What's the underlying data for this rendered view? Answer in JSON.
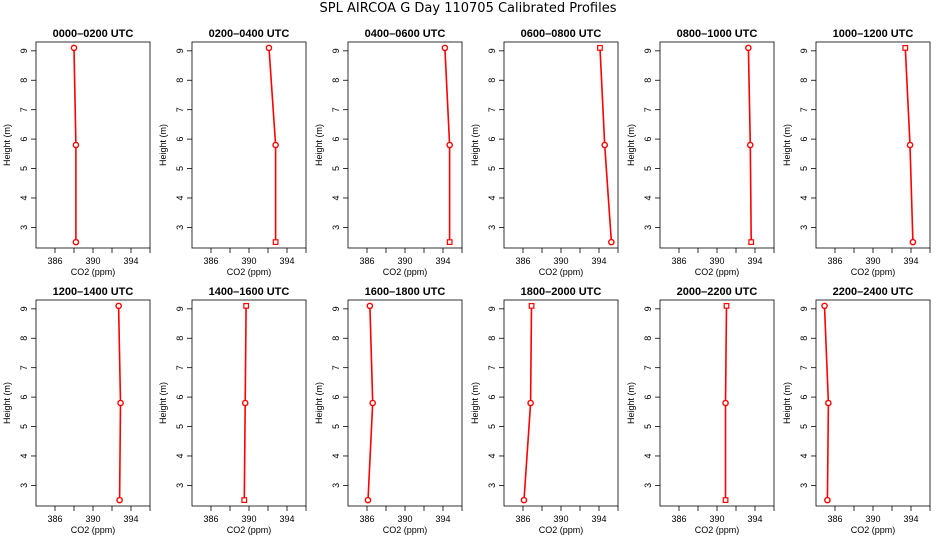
{
  "title": "SPL AIRCOA G  Day 110705  Calibrated Profiles",
  "colors": {
    "series": "#ff0000",
    "axis": "#000000"
  },
  "chart_data": [
    {
      "type": "line",
      "title": "0000–0200 UTC",
      "xlabel": "CO2 (ppm)",
      "ylabel": "Height (m)",
      "xlim": [
        384,
        396
      ],
      "ylim": [
        2.3,
        9.3
      ],
      "xticks": [
        "386",
        "390",
        "394"
      ],
      "yticks": [
        "3",
        "4",
        "5",
        "6",
        "7",
        "8",
        "9"
      ],
      "height": [
        9.1,
        5.8,
        2.5
      ],
      "co2": [
        388.0,
        388.2,
        388.2
      ],
      "markers": [
        "circle",
        "circle",
        "circle"
      ]
    },
    {
      "type": "line",
      "title": "0200–0400 UTC",
      "xlabel": "CO2 (ppm)",
      "ylabel": "Height (m)",
      "xlim": [
        384,
        396
      ],
      "ylim": [
        2.3,
        9.3
      ],
      "xticks": [
        "386",
        "390",
        "394"
      ],
      "yticks": [
        "3",
        "4",
        "5",
        "6",
        "7",
        "8",
        "9"
      ],
      "height": [
        9.1,
        5.8,
        2.5
      ],
      "co2": [
        392.1,
        392.8,
        392.8
      ],
      "markers": [
        "circle",
        "circle",
        "square"
      ]
    },
    {
      "type": "line",
      "title": "0400–0600 UTC",
      "xlabel": "CO2 (ppm)",
      "ylabel": "Height (m)",
      "xlim": [
        384,
        396
      ],
      "ylim": [
        2.3,
        9.3
      ],
      "xticks": [
        "386",
        "390",
        "394"
      ],
      "yticks": [
        "3",
        "4",
        "5",
        "6",
        "7",
        "8",
        "9"
      ],
      "height": [
        9.1,
        5.8,
        2.5
      ],
      "co2": [
        394.2,
        394.7,
        394.7
      ],
      "markers": [
        "circle",
        "circle",
        "square"
      ]
    },
    {
      "type": "line",
      "title": "0600–0800 UTC",
      "xlabel": "CO2 (ppm)",
      "ylabel": "Height (m)",
      "xlim": [
        384,
        396
      ],
      "ylim": [
        2.3,
        9.3
      ],
      "xticks": [
        "386",
        "390",
        "394"
      ],
      "yticks": [
        "3",
        "4",
        "5",
        "6",
        "7",
        "8",
        "9"
      ],
      "height": [
        9.1,
        5.8,
        2.5
      ],
      "co2": [
        394.1,
        394.6,
        395.3
      ],
      "markers": [
        "square",
        "circle",
        "circle"
      ]
    },
    {
      "type": "line",
      "title": "0800–1000 UTC",
      "xlabel": "CO2 (ppm)",
      "ylabel": "Height (m)",
      "xlim": [
        384,
        396
      ],
      "ylim": [
        2.3,
        9.3
      ],
      "xticks": [
        "386",
        "390",
        "394"
      ],
      "yticks": [
        "3",
        "4",
        "5",
        "6",
        "7",
        "8",
        "9"
      ],
      "height": [
        9.1,
        5.8,
        2.5
      ],
      "co2": [
        393.3,
        393.5,
        393.6
      ],
      "markers": [
        "circle",
        "circle",
        "square"
      ]
    },
    {
      "type": "line",
      "title": "1000–1200 UTC",
      "xlabel": "CO2 (ppm)",
      "ylabel": "Height (m)",
      "xlim": [
        384,
        396
      ],
      "ylim": [
        2.3,
        9.3
      ],
      "xticks": [
        "386",
        "390",
        "394"
      ],
      "yticks": [
        "3",
        "4",
        "5",
        "6",
        "7",
        "8",
        "9"
      ],
      "height": [
        9.1,
        5.8,
        2.5
      ],
      "co2": [
        393.4,
        393.9,
        394.2
      ],
      "markers": [
        "square",
        "circle",
        "circle"
      ]
    },
    {
      "type": "line",
      "title": "1200–1400 UTC",
      "xlabel": "CO2 (ppm)",
      "ylabel": "Height (m)",
      "xlim": [
        384,
        396
      ],
      "ylim": [
        2.3,
        9.3
      ],
      "xticks": [
        "386",
        "390",
        "394"
      ],
      "yticks": [
        "3",
        "4",
        "5",
        "6",
        "7",
        "8",
        "9"
      ],
      "height": [
        9.1,
        5.8,
        2.5
      ],
      "co2": [
        392.7,
        392.9,
        392.8
      ],
      "markers": [
        "circle",
        "circle",
        "circle"
      ]
    },
    {
      "type": "line",
      "title": "1400–1600 UTC",
      "xlabel": "CO2 (ppm)",
      "ylabel": "Height (m)",
      "xlim": [
        384,
        396
      ],
      "ylim": [
        2.3,
        9.3
      ],
      "xticks": [
        "386",
        "390",
        "394"
      ],
      "yticks": [
        "3",
        "4",
        "5",
        "6",
        "7",
        "8",
        "9"
      ],
      "height": [
        9.1,
        5.8,
        2.5
      ],
      "co2": [
        389.7,
        389.6,
        389.5
      ],
      "markers": [
        "square",
        "circle",
        "square"
      ]
    },
    {
      "type": "line",
      "title": "1600–1800 UTC",
      "xlabel": "CO2 (ppm)",
      "ylabel": "Height (m)",
      "xlim": [
        384,
        396
      ],
      "ylim": [
        2.3,
        9.3
      ],
      "xticks": [
        "386",
        "390",
        "394"
      ],
      "yticks": [
        "3",
        "4",
        "5",
        "6",
        "7",
        "8",
        "9"
      ],
      "height": [
        9.1,
        5.8,
        2.5
      ],
      "co2": [
        386.3,
        386.6,
        386.1
      ],
      "markers": [
        "circle",
        "circle",
        "circle"
      ]
    },
    {
      "type": "line",
      "title": "1800–2000 UTC",
      "xlabel": "CO2 (ppm)",
      "ylabel": "Height (m)",
      "xlim": [
        384,
        396
      ],
      "ylim": [
        2.3,
        9.3
      ],
      "xticks": [
        "386",
        "390",
        "394"
      ],
      "yticks": [
        "3",
        "4",
        "5",
        "6",
        "7",
        "8",
        "9"
      ],
      "height": [
        9.1,
        5.8,
        2.5
      ],
      "co2": [
        386.9,
        386.8,
        386.1
      ],
      "markers": [
        "square",
        "circle",
        "circle"
      ]
    },
    {
      "type": "line",
      "title": "2000–2200 UTC",
      "xlabel": "CO2 (ppm)",
      "ylabel": "Height (m)",
      "xlim": [
        384,
        396
      ],
      "ylim": [
        2.3,
        9.3
      ],
      "xticks": [
        "386",
        "390",
        "394"
      ],
      "yticks": [
        "3",
        "4",
        "5",
        "6",
        "7",
        "8",
        "9"
      ],
      "height": [
        9.1,
        5.8,
        2.5
      ],
      "co2": [
        391.0,
        390.9,
        390.9
      ],
      "markers": [
        "square",
        "circle",
        "square"
      ]
    },
    {
      "type": "line",
      "title": "2200–2400 UTC",
      "xlabel": "CO2 (ppm)",
      "ylabel": "Height (m)",
      "xlim": [
        384,
        396
      ],
      "ylim": [
        2.3,
        9.3
      ],
      "xticks": [
        "386",
        "390",
        "394"
      ],
      "yticks": [
        "3",
        "4",
        "5",
        "6",
        "7",
        "8",
        "9"
      ],
      "height": [
        9.1,
        5.8,
        2.5
      ],
      "co2": [
        384.9,
        385.3,
        385.2
      ],
      "markers": [
        "circle",
        "circle",
        "circle"
      ]
    }
  ]
}
